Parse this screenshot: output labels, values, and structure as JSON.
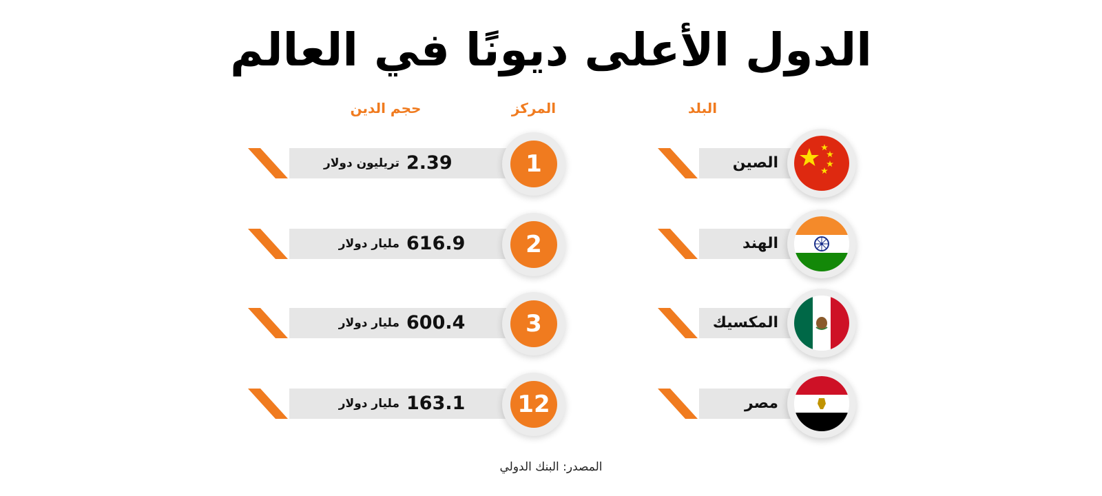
{
  "title": "الدول الأعلى ديونًا في العالم",
  "headers": {
    "country": "البلد",
    "rank": "المركز",
    "debt": "حجم الدين"
  },
  "colors": {
    "accent": "#f07b1f",
    "bar": "#e6e6e6"
  },
  "rows": [
    {
      "country": "الصين",
      "flag_icon": "china-flag-icon",
      "rank": "1",
      "debt_value": "2.39",
      "debt_unit": "تريليون دولار"
    },
    {
      "country": "الهند",
      "flag_icon": "india-flag-icon",
      "rank": "2",
      "debt_value": "616.9",
      "debt_unit": "مليار دولار"
    },
    {
      "country": "المكسيك",
      "flag_icon": "mexico-flag-icon",
      "rank": "3",
      "debt_value": "600.4",
      "debt_unit": "مليار دولار"
    },
    {
      "country": "مصر",
      "flag_icon": "egypt-flag-icon",
      "rank": "12",
      "debt_value": "163.1",
      "debt_unit": "مليار دولار"
    }
  ],
  "source": "المصدر: البنك الدولي"
}
